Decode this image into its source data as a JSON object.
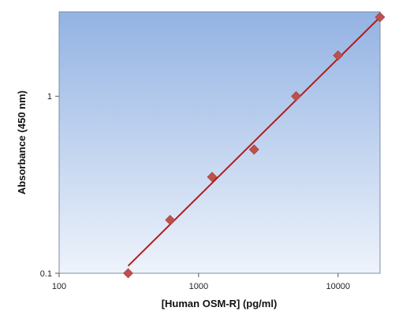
{
  "chart_data": {
    "type": "scatter",
    "title": "",
    "xlabel": "[Human OSM-R] (pg/ml)",
    "ylabel": "Absorbance (450 nm)",
    "x_scale": "log",
    "y_scale": "log",
    "xlim": [
      100,
      20000
    ],
    "ylim": [
      0.1,
      3
    ],
    "x_ticks": [
      100,
      1000,
      10000
    ],
    "x_tick_labels": [
      "100",
      "1000",
      "10000"
    ],
    "y_ticks": [
      0.1,
      1
    ],
    "y_tick_labels": [
      "0.1",
      "1"
    ],
    "grid": false,
    "legend": "none",
    "series": [
      {
        "values_x": [
          312.5,
          625,
          1250,
          2500,
          5000,
          10000,
          20000
        ],
        "values_y": [
          0.1,
          0.2,
          0.35,
          0.5,
          1.0,
          1.7,
          2.8
        ],
        "marker": "diamond",
        "color": "#c0504d"
      }
    ],
    "fit_line": {
      "x": [
        312.5,
        20000
      ],
      "y": [
        0.11,
        2.8
      ],
      "color": "#b01c1c"
    },
    "colors": {
      "plot_bg_top": "#93b3e3",
      "plot_bg_bottom": "#eef3fb",
      "marker": "#c0504d",
      "fit": "#b01c1c"
    }
  }
}
